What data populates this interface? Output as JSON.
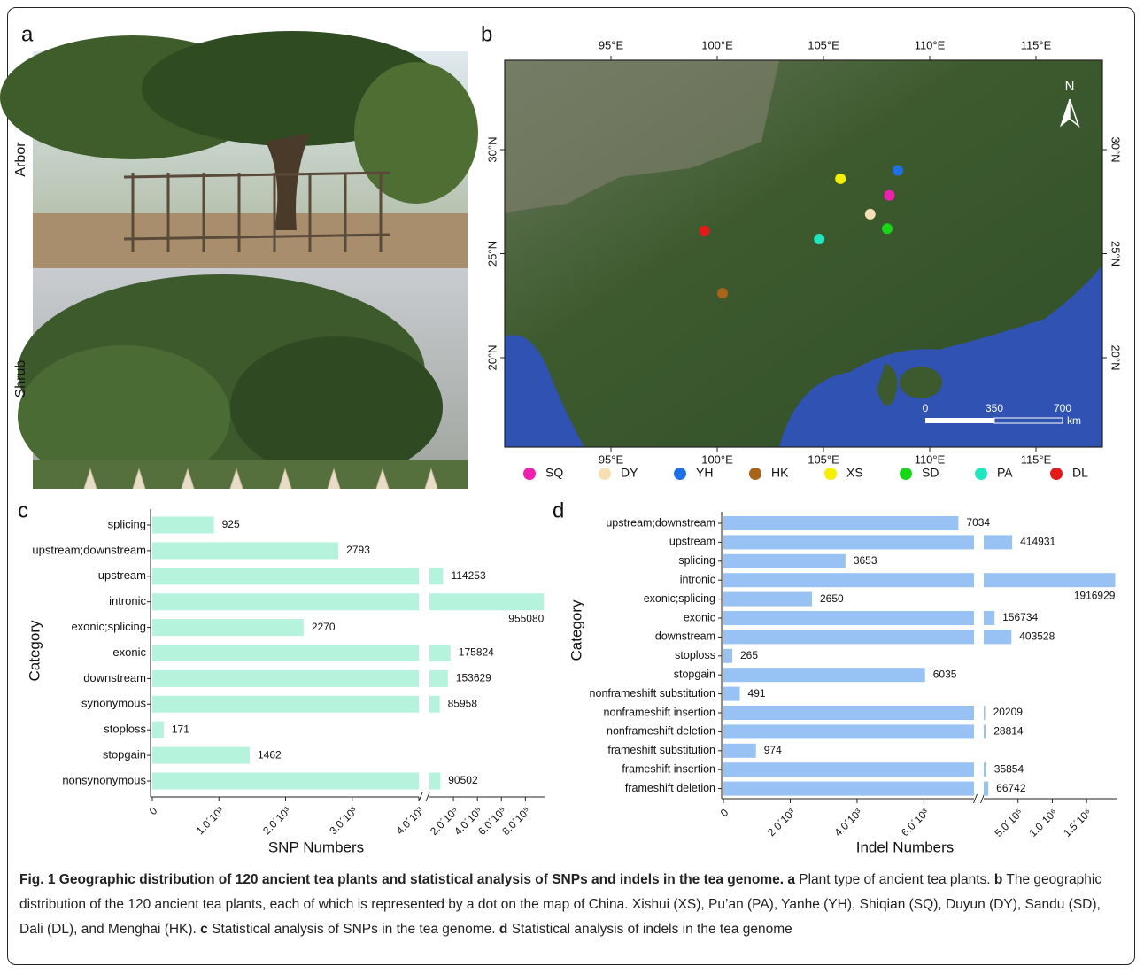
{
  "panels": {
    "a": {
      "label": "a",
      "row_labels": [
        "Arbor",
        "Shrub"
      ]
    },
    "b": {
      "label": "b",
      "xlim": [
        90,
        118.125
      ],
      "ylim": [
        15.7,
        34.3
      ],
      "xticks": [
        {
          "value": 95,
          "label": "95°E"
        },
        {
          "value": 100,
          "label": "100°E"
        },
        {
          "value": 105,
          "label": "105°E"
        },
        {
          "value": 110,
          "label": "110°E"
        },
        {
          "value": 115,
          "label": "115°E"
        }
      ],
      "yticks": [
        {
          "value": 20,
          "label": "20°N"
        },
        {
          "value": 25,
          "label": "25°N"
        },
        {
          "value": 30,
          "label": "30°N"
        }
      ],
      "north": "N",
      "scale_labels": [
        "0",
        "350",
        "700"
      ],
      "scale_unit": "km",
      "sites": [
        {
          "name": "SQ",
          "color": "#f01fb0",
          "lon": 108.1,
          "lat": 27.8
        },
        {
          "name": "DY",
          "color": "#f7dfb5",
          "lon": 107.2,
          "lat": 26.9
        },
        {
          "name": "YH",
          "color": "#1f6fe6",
          "lon": 108.5,
          "lat": 29.0
        },
        {
          "name": "HK",
          "color": "#a8641a",
          "lon": 100.25,
          "lat": 23.1
        },
        {
          "name": "XS",
          "color": "#f5f000",
          "lon": 105.8,
          "lat": 28.6
        },
        {
          "name": "SD",
          "color": "#19d619",
          "lon": 108.0,
          "lat": 26.2
        },
        {
          "name": "PA",
          "color": "#22e6c0",
          "lon": 104.8,
          "lat": 25.7
        },
        {
          "name": "DL",
          "color": "#e31a1a",
          "lon": 99.4,
          "lat": 26.1
        }
      ]
    }
  },
  "chart_data": [
    {
      "type": "bar",
      "horizontal": true,
      "panel_label": "c",
      "ylabel": "Category",
      "xlabel": "SNP Numbers",
      "color": "#b5f3dc",
      "categories": [
        "splicing",
        "upstream;downstream",
        "upstream",
        "intronic",
        "exonic;splicing",
        "exonic",
        "downstream",
        "synonymous",
        "stoploss",
        "stopgain",
        "nonsynonymous"
      ],
      "values": [
        925,
        2793,
        114253,
        955080,
        2270,
        175824,
        153629,
        85958,
        171,
        1462,
        90502
      ],
      "x_segments": [
        {
          "xlim": [
            0,
            4000
          ],
          "xticks": [
            0,
            {
              "value": 1000,
              "label": "1.0´10³"
            },
            {
              "value": 2000,
              "label": "2.0´10³"
            },
            {
              "value": 3000,
              "label": "3.0´10³"
            },
            {
              "value": 4000,
              "label": "4.0´10³"
            }
          ]
        },
        {
          "xlim": [
            0,
            960000
          ],
          "xticks": [
            {
              "value": 200000,
              "label": "2.0´10⁵"
            },
            {
              "value": 400000,
              "label": "4.0´10⁵"
            },
            {
              "value": 600000,
              "label": "6.0´10⁵"
            },
            {
              "value": 800000,
              "label": "8.0´10⁵"
            }
          ]
        }
      ]
    },
    {
      "type": "bar",
      "horizontal": true,
      "panel_label": "d",
      "ylabel": "Category",
      "xlabel": "Indel Numbers",
      "color": "#99c2f4",
      "categories": [
        "upstream;downstream",
        "upstream",
        "splicing",
        "intronic",
        "exonic;splicing",
        "exonic",
        "downstream",
        "stoploss",
        "stopgain",
        "nonframeshift substitution",
        "nonframeshift insertion",
        "nonframeshift deletion",
        "frameshift substitution",
        "frameshift insertion",
        "frameshift deletion"
      ],
      "values": [
        7034,
        414931,
        3653,
        1916929,
        2650,
        156734,
        403528,
        265,
        6035,
        491,
        20209,
        28814,
        974,
        35854,
        66742
      ],
      "x_segments": [
        {
          "xlim": [
            0,
            7500
          ],
          "xticks": [
            0,
            {
              "value": 2000,
              "label": "2.0´10³"
            },
            {
              "value": 4000,
              "label": "4.0´10³"
            },
            {
              "value": 6000,
              "label": "6.0´10³"
            }
          ]
        },
        {
          "xlim": [
            0,
            1950000
          ],
          "xticks": [
            {
              "value": 500000,
              "label": "5.0´10⁵"
            },
            {
              "value": 1000000,
              "label": "1.0´10⁶"
            },
            {
              "value": 1500000,
              "label": "1.5´10⁶"
            }
          ]
        }
      ]
    }
  ],
  "caption": {
    "segments": [
      {
        "text": "Fig. 1 Geographic distribution of 120 ancient tea plants and statistical analysis of SNPs and indels in the tea genome.",
        "bold": true
      },
      {
        "text": " a",
        "bold": true
      },
      {
        "text": " Plant type of ancient tea plants. ",
        "bold": false
      },
      {
        "text": "b",
        "bold": true
      },
      {
        "text": " The geographic distribution of the 120 ancient tea plants, each of which is represented by a dot on the map of China. Xishui (XS), Pu’an (PA), Yanhe (YH), Shiqian (SQ), Duyun (DY), Sandu (SD), Dali (DL), and Menghai (HK). ",
        "bold": false
      },
      {
        "text": "c",
        "bold": true
      },
      {
        "text": " Statistical analysis of SNPs in the tea genome. ",
        "bold": false
      },
      {
        "text": "d",
        "bold": true
      },
      {
        "text": " Statistical analysis of indels in the tea genome",
        "bold": false
      }
    ]
  }
}
